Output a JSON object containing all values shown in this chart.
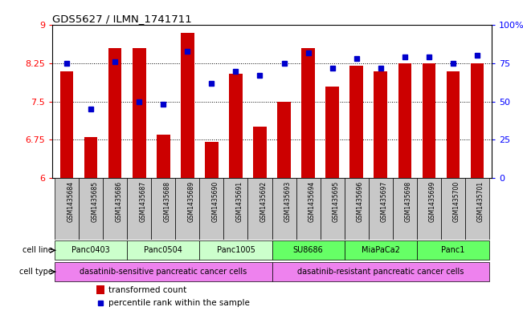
{
  "title": "GDS5627 / ILMN_1741711",
  "samples": [
    "GSM1435684",
    "GSM1435685",
    "GSM1435686",
    "GSM1435687",
    "GSM1435688",
    "GSM1435689",
    "GSM1435690",
    "GSM1435691",
    "GSM1435692",
    "GSM1435693",
    "GSM1435694",
    "GSM1435695",
    "GSM1435696",
    "GSM1435697",
    "GSM1435698",
    "GSM1435699",
    "GSM1435700",
    "GSM1435701"
  ],
  "bar_values": [
    8.1,
    6.8,
    8.55,
    8.55,
    6.85,
    8.85,
    6.7,
    8.05,
    7.0,
    7.5,
    8.55,
    7.8,
    8.2,
    8.1,
    8.25,
    8.25,
    8.1,
    8.25
  ],
  "percentile_values": [
    75,
    45,
    76,
    50,
    48,
    83,
    62,
    70,
    67,
    75,
    82,
    72,
    78,
    72,
    79,
    79,
    75,
    80
  ],
  "bar_color": "#cc0000",
  "percentile_color": "#0000cc",
  "ylim_left": [
    6,
    9
  ],
  "ylim_right": [
    0,
    100
  ],
  "yticks_left": [
    6,
    6.75,
    7.5,
    8.25,
    9
  ],
  "yticks_right": [
    0,
    25,
    50,
    75,
    100
  ],
  "ytick_labels_left": [
    "6",
    "6.75",
    "7.5",
    "8.25",
    "9"
  ],
  "ytick_labels_right": [
    "0",
    "25",
    "50",
    "75",
    "100%"
  ],
  "cell_lines": [
    {
      "label": "Panc0403",
      "start": 0,
      "end": 2,
      "color": "#ccffcc"
    },
    {
      "label": "Panc0504",
      "start": 3,
      "end": 5,
      "color": "#ccffcc"
    },
    {
      "label": "Panc1005",
      "start": 6,
      "end": 8,
      "color": "#ccffcc"
    },
    {
      "label": "SU8686",
      "start": 9,
      "end": 11,
      "color": "#66ff66"
    },
    {
      "label": "MiaPaCa2",
      "start": 12,
      "end": 14,
      "color": "#66ff66"
    },
    {
      "label": "Panc1",
      "start": 15,
      "end": 17,
      "color": "#66ff66"
    }
  ],
  "cell_types": [
    {
      "label": "dasatinib-sensitive pancreatic cancer cells",
      "start": 0,
      "end": 8,
      "color": "#ee82ee"
    },
    {
      "label": "dasatinib-resistant pancreatic cancer cells",
      "start": 9,
      "end": 17,
      "color": "#ee82ee"
    }
  ],
  "cell_line_label": "cell line",
  "cell_type_label": "cell type",
  "legend_bar_label": "transformed count",
  "legend_pct_label": "percentile rank within the sample",
  "grid_color": "black",
  "sample_bg_color": "#c8c8c8"
}
